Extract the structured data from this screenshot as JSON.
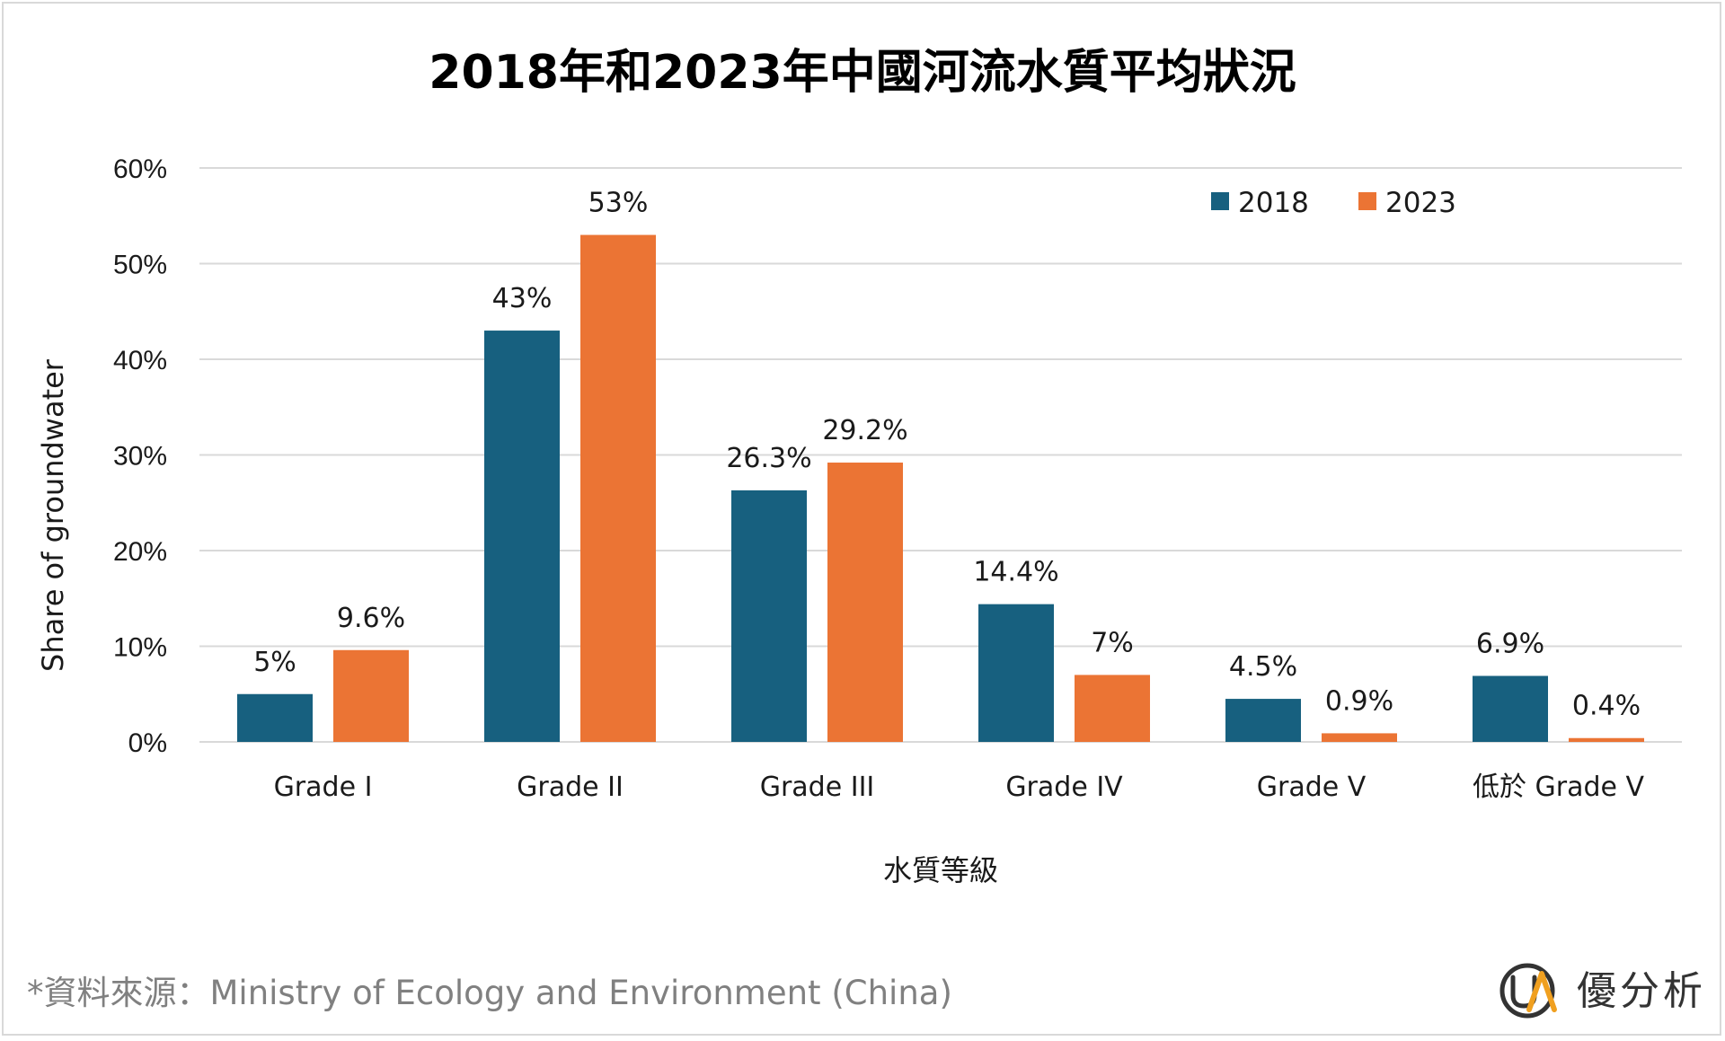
{
  "chart_data": {
    "type": "bar",
    "title": "2018年和2023年中國河流水質平均狀況",
    "xlabel": "水質等級",
    "ylabel": "Share of groundwater",
    "categories": [
      "Grade I",
      "Grade II",
      "Grade III",
      "Grade IV",
      "Grade V",
      "低於 Grade V"
    ],
    "series": [
      {
        "name": "2018",
        "color": "#17607f",
        "values": [
          5,
          43,
          26.3,
          14.4,
          4.5,
          6.9
        ],
        "labels": [
          "5%",
          "43%",
          "26.3%",
          "14.4%",
          "4.5%",
          "6.9%"
        ]
      },
      {
        "name": "2023",
        "color": "#eb7434",
        "values": [
          9.6,
          53,
          29.2,
          7,
          0.9,
          0.4
        ],
        "labels": [
          "9.6%",
          "53%",
          "29.2%",
          "7%",
          "0.9%",
          "0.4%"
        ]
      }
    ],
    "ylim": [
      0,
      60
    ],
    "yticks": [
      0,
      10,
      20,
      30,
      40,
      50,
      60
    ],
    "ytick_labels": [
      "0%",
      "10%",
      "20%",
      "30%",
      "40%",
      "50%",
      "60%"
    ],
    "grid": true,
    "legend_position": "top-right"
  },
  "footer": {
    "source": "*資料來源：Ministry of Ecology and Environment (China)",
    "logo_text": "優分析",
    "logo_mark": "UA"
  }
}
